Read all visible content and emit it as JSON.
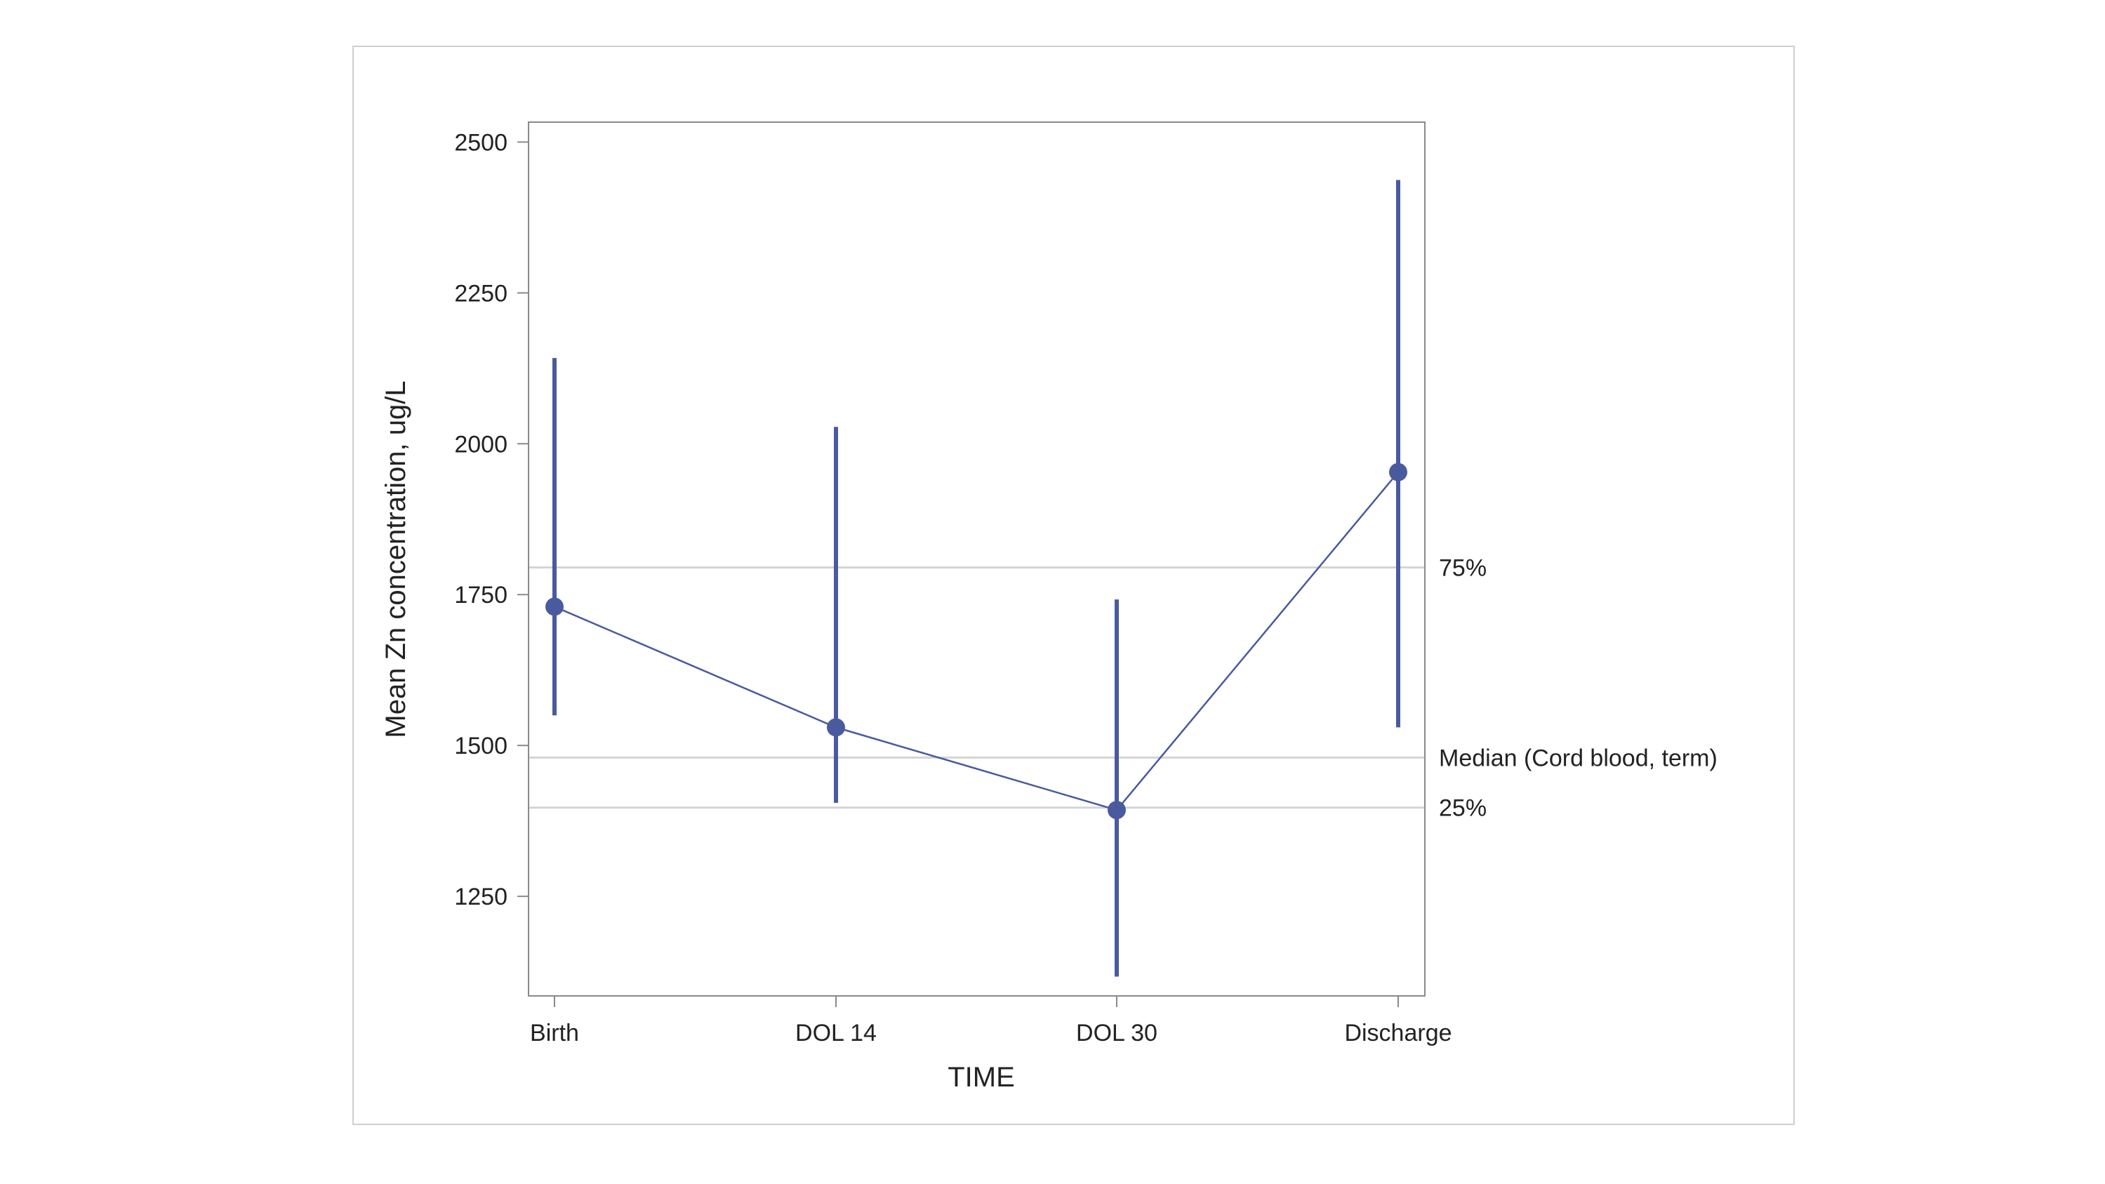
{
  "chart_data": {
    "type": "line",
    "title": "",
    "xlabel": "TIME",
    "ylabel": "Mean Zn concentration, ug/L",
    "categories": [
      "Birth",
      "DOL 14",
      "DOL 30",
      "Discharge"
    ],
    "series": [
      {
        "values": [
          1730,
          1530,
          1393,
          1953
        ],
        "lower": [
          1550,
          1405,
          1117,
          1530
        ],
        "upper": [
          2142,
          2028,
          1742,
          2437
        ]
      }
    ],
    "ylim": [
      1085,
      2533
    ],
    "yticks": [
      1250,
      1500,
      1750,
      2000,
      2250,
      2500
    ],
    "reference_lines": [
      {
        "label": "75%",
        "value": 1795
      },
      {
        "label": "Median (Cord blood, term)",
        "value": 1480
      },
      {
        "label": "25%",
        "value": 1397
      }
    ],
    "grid": false,
    "legend": "none",
    "colors": {
      "series": "#4a5a9e",
      "reference": "#d4d4d4",
      "axis": "#8a8a8a",
      "frame": "#cfcfcf"
    }
  }
}
